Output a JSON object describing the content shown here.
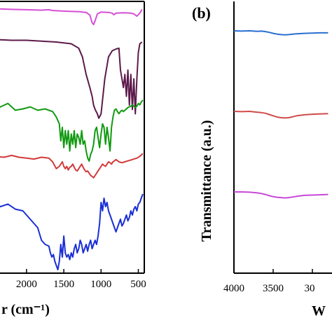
{
  "chart_data": [
    {
      "type": "line",
      "panel": "left",
      "xlabel": "r (cm⁻¹)",
      "xlim": [
        2450,
        420
      ],
      "x_reversed": true,
      "x_ticks": [
        "2000",
        "1500",
        "1000",
        "500"
      ],
      "grid": false,
      "series": [
        {
          "color": "#d64fd6",
          "x": [
            2450,
            2200,
            2000,
            1800,
            1700,
            1650,
            1550,
            1450,
            1300,
            1200,
            1150,
            1120,
            1100,
            1080,
            1050,
            1000,
            900,
            850,
            830,
            800,
            700,
            600,
            560,
            520,
            480,
            450
          ],
          "y": [
            0.92,
            0.9,
            0.89,
            0.88,
            0.89,
            0.87,
            0.86,
            0.85,
            0.84,
            0.82,
            0.75,
            0.55,
            0.5,
            0.6,
            0.78,
            0.83,
            0.82,
            0.8,
            0.76,
            0.8,
            0.81,
            0.8,
            0.78,
            0.72,
            0.8,
            0.9
          ]
        },
        {
          "color": "#5c1a4a",
          "x": [
            2450,
            2200,
            2000,
            1800,
            1600,
            1500,
            1400,
            1300,
            1250,
            1200,
            1150,
            1120,
            1100,
            1080,
            1050,
            1030,
            1000,
            950,
            900,
            850,
            800,
            760,
            740,
            720,
            700,
            680,
            660,
            640,
            620,
            600,
            580,
            560,
            540,
            520,
            500,
            480,
            450
          ],
          "y": [
            0.95,
            0.94,
            0.94,
            0.93,
            0.92,
            0.91,
            0.9,
            0.85,
            0.75,
            0.55,
            0.4,
            0.3,
            0.2,
            0.15,
            0.1,
            0.05,
            0.1,
            0.5,
            0.75,
            0.82,
            0.84,
            0.85,
            0.6,
            0.5,
            0.4,
            0.55,
            0.3,
            0.6,
            0.2,
            0.55,
            0.15,
            0.5,
            0.1,
            0.5,
            0.8,
            0.9,
            0.92
          ]
        },
        {
          "color": "#119a11",
          "x": [
            2450,
            2350,
            2250,
            2150,
            2050,
            1950,
            1850,
            1750,
            1650,
            1600,
            1560,
            1540,
            1520,
            1500,
            1480,
            1460,
            1440,
            1420,
            1400,
            1380,
            1360,
            1340,
            1320,
            1300,
            1280,
            1260,
            1240,
            1220,
            1200,
            1180,
            1160,
            1140,
            1120,
            1100,
            1080,
            1060,
            1040,
            1020,
            1000,
            980,
            960,
            940,
            920,
            900,
            880,
            860,
            840,
            820,
            800,
            780,
            760,
            740,
            720,
            700,
            680,
            660,
            640,
            620,
            600,
            580,
            560,
            540,
            520,
            500,
            480,
            460,
            440
          ],
          "y": [
            0.88,
            0.85,
            0.9,
            0.8,
            0.82,
            0.85,
            0.8,
            0.82,
            0.78,
            0.7,
            0.6,
            0.35,
            0.55,
            0.25,
            0.5,
            0.3,
            0.5,
            0.2,
            0.45,
            0.3,
            0.5,
            0.25,
            0.45,
            0.4,
            0.3,
            0.5,
            0.3,
            0.35,
            0.2,
            0.1,
            0.05,
            0.15,
            0.2,
            0.3,
            0.5,
            0.55,
            0.4,
            0.25,
            0.45,
            0.6,
            0.55,
            0.3,
            0.55,
            0.4,
            0.2,
            0.55,
            0.7,
            0.8,
            0.82,
            0.78,
            0.75,
            0.78,
            0.8,
            0.78,
            0.8,
            0.82,
            0.84,
            0.85,
            0.86,
            0.88,
            0.86,
            0.84,
            0.86,
            0.9,
            0.88,
            0.92,
            0.95
          ]
        },
        {
          "color": "#d23a3a",
          "x": [
            2450,
            2300,
            2200,
            2100,
            2000,
            1900,
            1800,
            1700,
            1650,
            1600,
            1560,
            1520,
            1500,
            1480,
            1460,
            1440,
            1420,
            1400,
            1380,
            1360,
            1340,
            1320,
            1300,
            1280,
            1260,
            1240,
            1220,
            1200,
            1180,
            1160,
            1140,
            1120,
            1100,
            1080,
            1060,
            1040,
            1020,
            1000,
            980,
            960,
            940,
            920,
            900,
            880,
            860,
            840,
            820,
            800,
            760,
            720,
            680,
            640,
            600,
            560,
            520,
            480,
            440
          ],
          "y": [
            0.72,
            0.7,
            0.74,
            0.7,
            0.68,
            0.66,
            0.7,
            0.68,
            0.6,
            0.45,
            0.5,
            0.6,
            0.5,
            0.45,
            0.5,
            0.42,
            0.48,
            0.5,
            0.55,
            0.48,
            0.42,
            0.4,
            0.45,
            0.5,
            0.55,
            0.48,
            0.42,
            0.38,
            0.4,
            0.35,
            0.3,
            0.28,
            0.25,
            0.3,
            0.35,
            0.4,
            0.45,
            0.5,
            0.55,
            0.52,
            0.5,
            0.55,
            0.6,
            0.58,
            0.55,
            0.6,
            0.62,
            0.65,
            0.6,
            0.58,
            0.6,
            0.62,
            0.64,
            0.66,
            0.68,
            0.72,
            0.78
          ]
        },
        {
          "color": "#1a2fd6",
          "x": [
            2450,
            2350,
            2250,
            2150,
            2050,
            1950,
            1850,
            1800,
            1750,
            1700,
            1680,
            1660,
            1640,
            1620,
            1600,
            1580,
            1560,
            1540,
            1520,
            1500,
            1480,
            1460,
            1440,
            1420,
            1400,
            1380,
            1360,
            1340,
            1320,
            1300,
            1280,
            1260,
            1240,
            1220,
            1200,
            1180,
            1160,
            1140,
            1120,
            1100,
            1080,
            1060,
            1040,
            1020,
            1000,
            980,
            960,
            940,
            920,
            900,
            880,
            860,
            840,
            820,
            800,
            780,
            760,
            740,
            720,
            700,
            680,
            660,
            640,
            620,
            600,
            580,
            560,
            540,
            520,
            500,
            480,
            460,
            440
          ],
          "y": [
            0.8,
            0.75,
            0.78,
            0.72,
            0.7,
            0.6,
            0.5,
            0.35,
            0.3,
            0.28,
            0.2,
            0.15,
            0.18,
            0.1,
            0.05,
            0.0,
            0.1,
            0.3,
            0.15,
            0.4,
            0.2,
            0.15,
            0.18,
            0.12,
            0.2,
            0.15,
            0.25,
            0.3,
            0.2,
            0.25,
            0.35,
            0.3,
            0.2,
            0.25,
            0.3,
            0.22,
            0.3,
            0.35,
            0.25,
            0.3,
            0.35,
            0.3,
            0.4,
            0.55,
            0.8,
            0.7,
            0.85,
            0.75,
            0.8,
            0.7,
            0.65,
            0.6,
            0.55,
            0.5,
            0.45,
            0.5,
            0.55,
            0.6,
            0.52,
            0.55,
            0.6,
            0.65,
            0.58,
            0.62,
            0.7,
            0.65,
            0.72,
            0.75,
            0.7,
            0.78,
            0.8,
            0.85,
            0.9
          ]
        }
      ]
    },
    {
      "type": "line",
      "panel": "right",
      "panel_label": "(b)",
      "ylabel": "Transmittance (a.u.)",
      "xlabel": "W",
      "xlim": [
        4000,
        2750
      ],
      "x_reversed": true,
      "x_ticks": [
        "4000",
        "3500",
        "30"
      ],
      "grid": false,
      "series": [
        {
          "color": "#2a6fd1",
          "x": [
            4000,
            3900,
            3800,
            3700,
            3650,
            3600,
            3550,
            3500,
            3450,
            3400,
            3350,
            3300,
            3250,
            3200,
            3100,
            3000,
            2900,
            2800
          ],
          "y": [
            0.0,
            0.01,
            0.0,
            0.02,
            0.01,
            0.03,
            0.06,
            0.1,
            0.13,
            0.15,
            0.16,
            0.15,
            0.13,
            0.12,
            0.1,
            0.09,
            0.08,
            0.08
          ]
        },
        {
          "color": "#d04a4a",
          "x": [
            4000,
            3900,
            3800,
            3700,
            3650,
            3600,
            3550,
            3500,
            3450,
            3400,
            3350,
            3300,
            3250,
            3200,
            3100,
            3000,
            2900,
            2800
          ],
          "y": [
            0.0,
            0.01,
            0.0,
            0.03,
            0.04,
            0.06,
            0.1,
            0.14,
            0.18,
            0.2,
            0.21,
            0.2,
            0.17,
            0.14,
            0.11,
            0.09,
            0.08,
            0.07
          ]
        },
        {
          "color": "#c848d8",
          "x": [
            4000,
            3900,
            3800,
            3700,
            3650,
            3600,
            3550,
            3500,
            3450,
            3400,
            3350,
            3300,
            3250,
            3200,
            3100,
            3000,
            2900,
            2800
          ],
          "y": [
            0.0,
            0.0,
            0.01,
            0.03,
            0.05,
            0.08,
            0.12,
            0.15,
            0.17,
            0.18,
            0.19,
            0.18,
            0.16,
            0.14,
            0.11,
            0.1,
            0.09,
            0.08
          ]
        }
      ]
    }
  ]
}
